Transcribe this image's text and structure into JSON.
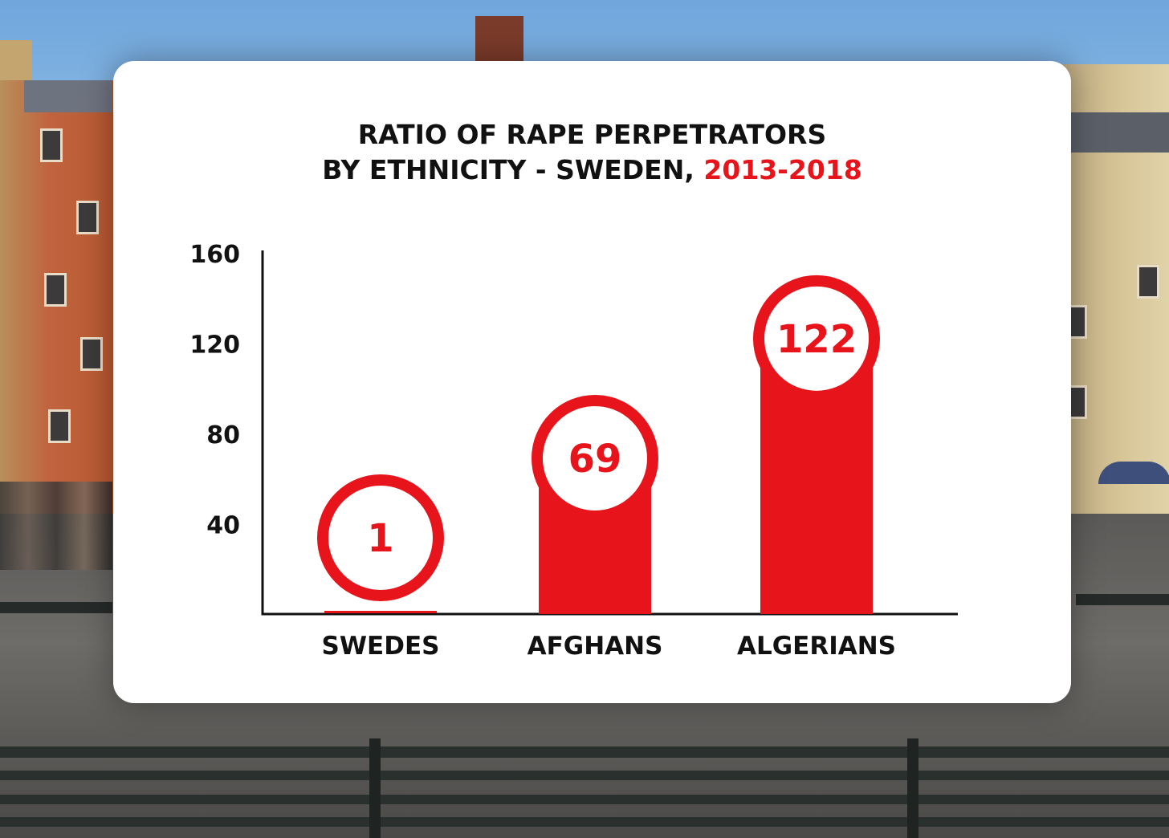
{
  "chart_data": {
    "type": "bar",
    "title_line1": "RATIO OF RAPE PERPETRATORS",
    "title_line2": "BY ETHNICITY - SWEDEN,",
    "title_years": "2013-2018",
    "categories": [
      "SWEDES",
      "AFGHANS",
      "ALGERIANS"
    ],
    "values": [
      1,
      69,
      122
    ],
    "value_labels": [
      "1",
      "69",
      "122"
    ],
    "yticks": [
      40,
      80,
      120,
      160
    ],
    "ylim": [
      0,
      160
    ],
    "xlabel": "",
    "ylabel": "",
    "grid": false,
    "bar_color": "#e8141b",
    "axis_color": "#111111"
  }
}
